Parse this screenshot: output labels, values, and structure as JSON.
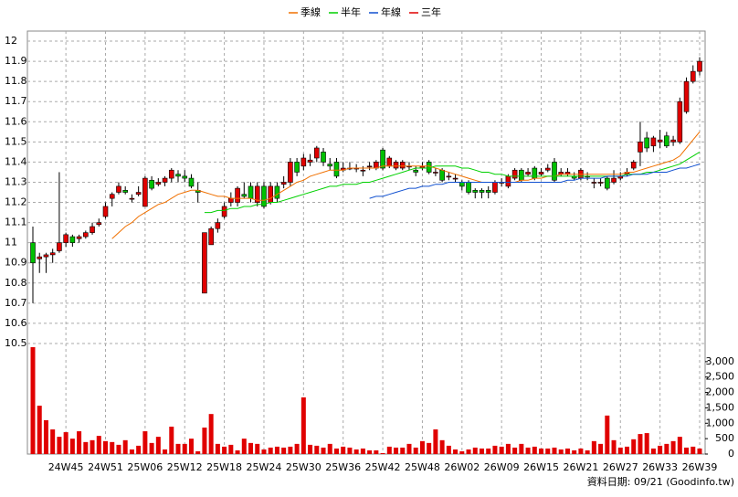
{
  "chart_data": {
    "type": "candlestick",
    "categories": [
      null,
      null,
      null,
      null,
      null,
      "24W45",
      null,
      null,
      null,
      null,
      null,
      "24W51",
      null,
      null,
      null,
      null,
      null,
      "25W06",
      null,
      null,
      null,
      null,
      null,
      "25W12",
      null,
      null,
      null,
      null,
      null,
      "25W18",
      null,
      null,
      null,
      null,
      null,
      "25W24",
      null,
      null,
      null,
      null,
      null,
      "25W30",
      null,
      null,
      null,
      null,
      null,
      "25W36",
      null,
      null,
      null,
      null,
      null,
      "25W42",
      null,
      null,
      null,
      null,
      null,
      "25W48",
      null,
      null,
      null,
      null,
      null,
      "26W02",
      null,
      null,
      null,
      null,
      null,
      "26W09",
      null,
      null,
      null,
      null,
      null,
      "26W15",
      null,
      null,
      null,
      null,
      null,
      "26W21",
      null,
      null,
      null,
      null,
      null,
      "26W27",
      null,
      null,
      null,
      null,
      null,
      "26W33",
      null,
      null,
      null,
      null,
      null,
      "26W39"
    ],
    "ohlc": [
      [
        11.0,
        11.08,
        10.7,
        10.9
      ],
      [
        10.92,
        10.95,
        10.85,
        10.93
      ],
      [
        10.93,
        10.95,
        10.85,
        10.94
      ],
      [
        10.94,
        10.97,
        10.9,
        10.95
      ],
      [
        10.96,
        11.35,
        10.95,
        11.0
      ],
      [
        11.0,
        11.05,
        10.98,
        11.04
      ],
      [
        11.03,
        11.04,
        10.98,
        11.0
      ],
      [
        11.02,
        11.04,
        11.0,
        11.03
      ],
      [
        11.03,
        11.06,
        11.02,
        11.05
      ],
      [
        11.05,
        11.1,
        11.04,
        11.08
      ],
      [
        11.09,
        11.12,
        11.08,
        11.1
      ],
      [
        11.13,
        11.2,
        11.12,
        11.18
      ],
      [
        11.22,
        11.25,
        11.18,
        11.24
      ],
      [
        11.25,
        11.3,
        11.24,
        11.28
      ],
      [
        11.26,
        11.28,
        11.24,
        11.25
      ],
      [
        11.22,
        11.24,
        11.2,
        11.22
      ],
      [
        11.24,
        11.28,
        11.23,
        11.25
      ],
      [
        11.18,
        11.33,
        11.18,
        11.32
      ],
      [
        11.31,
        11.33,
        11.26,
        11.27
      ],
      [
        11.29,
        11.32,
        11.28,
        11.3
      ],
      [
        11.3,
        11.33,
        11.28,
        11.32
      ],
      [
        11.32,
        11.37,
        11.3,
        11.36
      ],
      [
        11.34,
        11.36,
        11.3,
        11.33
      ],
      [
        11.33,
        11.36,
        11.3,
        11.32
      ],
      [
        11.32,
        11.34,
        11.27,
        11.28
      ],
      [
        11.26,
        11.3,
        11.2,
        11.25
      ],
      [
        10.75,
        11.05,
        10.75,
        11.05
      ],
      [
        10.99,
        11.08,
        10.99,
        11.07
      ],
      [
        11.07,
        11.12,
        11.05,
        11.1
      ],
      [
        11.13,
        11.2,
        11.12,
        11.18
      ],
      [
        11.2,
        11.25,
        11.18,
        11.22
      ],
      [
        11.2,
        11.28,
        11.18,
        11.27
      ],
      [
        11.24,
        11.3,
        11.22,
        11.23
      ],
      [
        11.28,
        11.3,
        11.2,
        11.22
      ],
      [
        11.2,
        11.3,
        11.18,
        11.28
      ],
      [
        11.28,
        11.3,
        11.17,
        11.18
      ],
      [
        11.2,
        11.3,
        11.19,
        11.28
      ],
      [
        11.28,
        11.3,
        11.2,
        11.22
      ],
      [
        11.29,
        11.33,
        11.27,
        11.3
      ],
      [
        11.3,
        11.42,
        11.28,
        11.4
      ],
      [
        11.4,
        11.42,
        11.33,
        11.35
      ],
      [
        11.38,
        11.44,
        11.36,
        11.42
      ],
      [
        11.4,
        11.44,
        11.38,
        11.41
      ],
      [
        11.42,
        11.48,
        11.4,
        11.47
      ],
      [
        11.45,
        11.47,
        11.38,
        11.4
      ],
      [
        11.39,
        11.42,
        11.36,
        11.38
      ],
      [
        11.4,
        11.42,
        11.32,
        11.33
      ],
      [
        11.36,
        11.4,
        11.35,
        11.37
      ],
      [
        11.37,
        11.4,
        11.36,
        11.37
      ],
      [
        11.37,
        11.39,
        11.35,
        11.37
      ],
      [
        11.36,
        11.38,
        11.33,
        11.36
      ],
      [
        11.38,
        11.4,
        11.36,
        11.38
      ],
      [
        11.37,
        11.41,
        11.36,
        11.4
      ],
      [
        11.46,
        11.47,
        11.36,
        11.37
      ],
      [
        11.38,
        11.43,
        11.37,
        11.42
      ],
      [
        11.37,
        11.41,
        11.36,
        11.4
      ],
      [
        11.37,
        11.41,
        11.36,
        11.4
      ],
      [
        11.38,
        11.4,
        11.36,
        11.38
      ],
      [
        11.36,
        11.38,
        11.33,
        11.35
      ],
      [
        11.37,
        11.4,
        11.36,
        11.38
      ],
      [
        11.4,
        11.41,
        11.34,
        11.35
      ],
      [
        11.35,
        11.37,
        11.33,
        11.35
      ],
      [
        11.36,
        11.37,
        11.3,
        11.31
      ],
      [
        11.33,
        11.35,
        11.31,
        11.33
      ],
      [
        11.32,
        11.34,
        11.3,
        11.32
      ],
      [
        11.3,
        11.31,
        11.26,
        11.28
      ],
      [
        11.3,
        11.31,
        11.24,
        11.25
      ],
      [
        11.26,
        11.27,
        11.22,
        11.25
      ],
      [
        11.26,
        11.27,
        11.22,
        11.25
      ],
      [
        11.26,
        11.28,
        11.22,
        11.25
      ],
      [
        11.25,
        11.31,
        11.24,
        11.3
      ],
      [
        11.3,
        11.32,
        11.28,
        11.3
      ],
      [
        11.28,
        11.34,
        11.27,
        11.33
      ],
      [
        11.32,
        11.37,
        11.31,
        11.36
      ],
      [
        11.36,
        11.37,
        11.3,
        11.31
      ],
      [
        11.34,
        11.37,
        11.33,
        11.35
      ],
      [
        11.37,
        11.38,
        11.31,
        11.32
      ],
      [
        11.34,
        11.37,
        11.33,
        11.35
      ],
      [
        11.36,
        11.39,
        11.35,
        11.37
      ],
      [
        11.4,
        11.42,
        11.3,
        11.31
      ],
      [
        11.34,
        11.37,
        11.33,
        11.35
      ],
      [
        11.34,
        11.37,
        11.33,
        11.35
      ],
      [
        11.33,
        11.35,
        11.31,
        11.32
      ],
      [
        11.32,
        11.37,
        11.31,
        11.36
      ],
      [
        11.33,
        11.35,
        11.31,
        11.33
      ],
      [
        11.3,
        11.32,
        11.27,
        11.3
      ],
      [
        11.3,
        11.32,
        11.28,
        11.3
      ],
      [
        11.32,
        11.33,
        11.26,
        11.27
      ],
      [
        11.3,
        11.36,
        11.29,
        11.32
      ],
      [
        11.32,
        11.35,
        11.31,
        11.33
      ],
      [
        11.34,
        11.37,
        11.33,
        11.35
      ],
      [
        11.37,
        11.41,
        11.36,
        11.4
      ],
      [
        11.45,
        11.6,
        11.38,
        11.5
      ],
      [
        11.52,
        11.55,
        11.45,
        11.47
      ],
      [
        11.48,
        11.53,
        11.45,
        11.52
      ],
      [
        11.5,
        11.56,
        11.47,
        11.51
      ],
      [
        11.53,
        11.55,
        11.47,
        11.48
      ],
      [
        11.5,
        11.53,
        11.48,
        11.51
      ],
      [
        11.5,
        11.72,
        11.49,
        11.7
      ],
      [
        11.65,
        11.82,
        11.64,
        11.8
      ],
      [
        11.8,
        11.88,
        11.79,
        11.85
      ],
      [
        11.85,
        11.92,
        11.83,
        11.9
      ]
    ],
    "up_color": "#e00000",
    "down_color": "#00c000",
    "ylim": [
      10.5,
      12.05
    ],
    "yticks": [
      10.5,
      10.6,
      10.7,
      10.8,
      10.9,
      11,
      11.1,
      11.2,
      11.3,
      11.4,
      11.5,
      11.6,
      11.7,
      11.8,
      11.9,
      12
    ],
    "grid": true,
    "series": [
      {
        "name": "季線",
        "color": "#f07000",
        "values": [
          null,
          null,
          null,
          null,
          null,
          null,
          null,
          null,
          null,
          null,
          null,
          null,
          11.02,
          11.05,
          11.08,
          11.1,
          11.13,
          11.15,
          11.17,
          11.19,
          11.2,
          11.22,
          11.24,
          11.25,
          11.26,
          11.26,
          11.25,
          11.24,
          11.23,
          11.23,
          11.22,
          11.22,
          11.22,
          11.22,
          11.21,
          11.21,
          11.22,
          11.24,
          11.26,
          11.28,
          11.3,
          11.31,
          11.33,
          11.34,
          11.35,
          11.36,
          11.36,
          11.36,
          11.37,
          11.37,
          11.37,
          11.37,
          11.37,
          11.38,
          11.38,
          11.38,
          11.38,
          11.38,
          11.38,
          11.38,
          11.38,
          11.37,
          11.36,
          11.35,
          11.34,
          11.33,
          11.32,
          11.31,
          11.3,
          11.3,
          11.3,
          11.3,
          11.3,
          11.3,
          11.31,
          11.31,
          11.32,
          11.32,
          11.33,
          11.33,
          11.34,
          11.34,
          11.34,
          11.34,
          11.34,
          11.34,
          11.34,
          11.34,
          11.34,
          11.34,
          11.35,
          11.35,
          11.36,
          11.37,
          11.38,
          11.39,
          11.4,
          11.41,
          11.43,
          11.47,
          11.51,
          11.55
        ]
      },
      {
        "name": "半年",
        "color": "#00d000",
        "values": [
          null,
          null,
          null,
          null,
          null,
          null,
          null,
          null,
          null,
          null,
          null,
          null,
          null,
          null,
          null,
          null,
          null,
          null,
          null,
          null,
          null,
          null,
          null,
          null,
          null,
          null,
          11.15,
          11.15,
          11.16,
          11.16,
          11.17,
          11.17,
          11.18,
          11.18,
          11.19,
          11.19,
          11.2,
          11.2,
          11.21,
          11.22,
          11.23,
          11.24,
          11.25,
          11.26,
          11.27,
          11.28,
          11.28,
          11.29,
          11.29,
          11.29,
          11.3,
          11.3,
          11.31,
          11.32,
          11.33,
          11.34,
          11.35,
          11.36,
          11.37,
          11.37,
          11.37,
          11.38,
          11.38,
          11.38,
          11.38,
          11.37,
          11.37,
          11.36,
          11.35,
          11.35,
          11.34,
          11.34,
          11.33,
          11.33,
          11.33,
          11.33,
          11.33,
          11.33,
          11.33,
          11.33,
          11.33,
          11.33,
          11.33,
          11.33,
          11.33,
          11.33,
          11.33,
          11.33,
          11.33,
          11.33,
          11.34,
          11.34,
          11.34,
          11.35,
          11.35,
          11.36,
          11.37,
          11.38,
          11.39,
          11.41,
          11.43,
          11.45
        ]
      },
      {
        "name": "年線",
        "color": "#1050d0",
        "values": [
          null,
          null,
          null,
          null,
          null,
          null,
          null,
          null,
          null,
          null,
          null,
          null,
          null,
          null,
          null,
          null,
          null,
          null,
          null,
          null,
          null,
          null,
          null,
          null,
          null,
          null,
          null,
          null,
          null,
          null,
          null,
          null,
          null,
          null,
          null,
          null,
          null,
          null,
          null,
          null,
          null,
          null,
          null,
          null,
          null,
          null,
          null,
          null,
          null,
          null,
          null,
          11.22,
          11.23,
          11.23,
          11.24,
          11.25,
          11.26,
          11.27,
          11.27,
          11.28,
          11.28,
          11.29,
          11.29,
          11.3,
          11.3,
          11.3,
          11.3,
          11.3,
          11.3,
          11.3,
          11.3,
          11.3,
          11.3,
          11.3,
          11.3,
          11.3,
          11.3,
          11.3,
          11.3,
          11.3,
          11.3,
          11.31,
          11.31,
          11.32,
          11.32,
          11.32,
          11.32,
          11.33,
          11.33,
          11.33,
          11.33,
          11.34,
          11.34,
          11.34,
          11.35,
          11.35,
          11.35,
          11.36,
          11.37,
          11.37,
          11.38,
          11.39
        ]
      },
      {
        "name": "三年",
        "color": "#e00000",
        "values": [
          null,
          null,
          null,
          null,
          null,
          null,
          null,
          null,
          null,
          null,
          null,
          null,
          null,
          null,
          null,
          null,
          null,
          null,
          null,
          null,
          null,
          null,
          null,
          null,
          null,
          null,
          null,
          null,
          null,
          null,
          null,
          null,
          null,
          null,
          null,
          null,
          null,
          null,
          null,
          null,
          null,
          null,
          null,
          null,
          null,
          null,
          null,
          null,
          null,
          null,
          null,
          null,
          null,
          null,
          null,
          null,
          null,
          null,
          null,
          null,
          null,
          null,
          null,
          null,
          null,
          null,
          null,
          null,
          null,
          null,
          null,
          null,
          null,
          null,
          null,
          null,
          null,
          null,
          null,
          null,
          null,
          null,
          null,
          null,
          null,
          null,
          null,
          null,
          null,
          null,
          null,
          null,
          null,
          null,
          null,
          null,
          null,
          null,
          null,
          null,
          null,
          null
        ]
      }
    ],
    "volume": {
      "color": "#e00000",
      "ylim": [
        0,
        3500
      ],
      "yticks": [
        0,
        500,
        {
          "value": 1000,
          "label": "1,000"
        },
        {
          "value": 1500,
          "label": "1,500"
        },
        {
          "value": 2000,
          "label": "2,000"
        },
        {
          "value": 2500,
          "label": "2,500"
        },
        {
          "value": 3000,
          "label": "3,000"
        }
      ],
      "values": [
        3470,
        1570,
        1100,
        800,
        560,
        710,
        500,
        740,
        390,
        450,
        590,
        420,
        390,
        300,
        450,
        150,
        270,
        740,
        360,
        560,
        150,
        890,
        330,
        330,
        500,
        90,
        860,
        1300,
        330,
        240,
        300,
        120,
        500,
        360,
        330,
        150,
        210,
        240,
        210,
        240,
        330,
        1840,
        300,
        270,
        210,
        330,
        180,
        240,
        210,
        150,
        180,
        120,
        120,
        30,
        240,
        210,
        210,
        330,
        210,
        420,
        360,
        800,
        450,
        270,
        150,
        90,
        150,
        210,
        180,
        180,
        270,
        240,
        330,
        210,
        330,
        210,
        240,
        180,
        180,
        210,
        150,
        180,
        120,
        180,
        120,
        420,
        330,
        1250,
        450,
        210,
        240,
        480,
        650,
        680,
        180,
        270,
        330,
        420,
        560,
        210,
        240,
        180
      ]
    },
    "note": "資料日期: 09/21  (Goodinfo.tw)"
  }
}
